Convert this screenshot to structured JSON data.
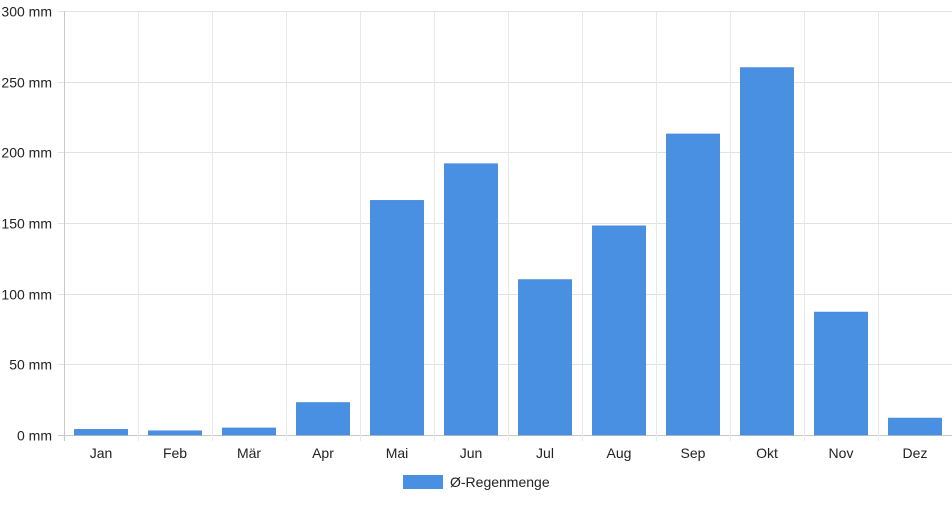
{
  "chart_data": {
    "type": "bar",
    "categories": [
      "Jan",
      "Feb",
      "Mär",
      "Apr",
      "Mai",
      "Jun",
      "Jul",
      "Aug",
      "Sep",
      "Okt",
      "Nov",
      "Dez"
    ],
    "series": [
      {
        "name": "Ø-Regenmenge",
        "values": [
          4,
          3,
          5,
          23,
          166,
          192,
          110,
          148,
          213,
          260,
          87,
          12
        ],
        "color": "#4a90e2"
      }
    ],
    "ylim": [
      0,
      300
    ],
    "yticks": [
      0,
      50,
      100,
      150,
      200,
      250,
      300
    ],
    "ytick_suffix": " mm",
    "grid": true,
    "legend_position": "bottom-center"
  }
}
